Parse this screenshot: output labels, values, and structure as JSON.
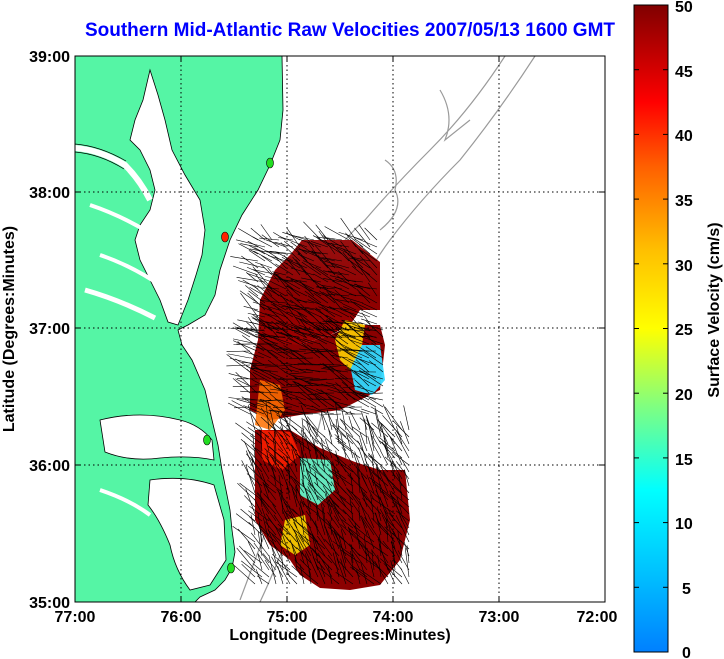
{
  "title": "Southern Mid-Atlantic Raw Velocities 2007/05/13 1600 GMT",
  "xlabel": "Longitude (Degrees:Minutes)",
  "ylabel": "Latitude (Degrees:Minutes)",
  "x_ticks": [
    "77:00",
    "76:00",
    "75:00",
    "74:00",
    "73:00",
    "72:00"
  ],
  "y_ticks": [
    "39:00",
    "38:00",
    "37:00",
    "36:00",
    "35:00"
  ],
  "colorbar": {
    "label": "Surface Velocity (cm/s)",
    "ticks": [
      "0",
      "5",
      "10",
      "15",
      "20",
      "25",
      "30",
      "35",
      "40",
      "45",
      "50"
    ],
    "range": [
      0,
      50
    ]
  },
  "colors": {
    "land": "#55f5a5",
    "title": "#0000ff",
    "bathymetry": "#9a9a9a",
    "station_green": "#22dd22",
    "station_red": "#ff2200"
  },
  "stations": [
    {
      "color": "green",
      "lon": -75.15,
      "lat": 38.2
    },
    {
      "color": "red",
      "lon": -75.55,
      "lat": 37.72
    },
    {
      "color": "green",
      "lon": -75.72,
      "lat": 36.18
    },
    {
      "color": "green",
      "lon": -75.52,
      "lat": 35.25
    }
  ]
}
